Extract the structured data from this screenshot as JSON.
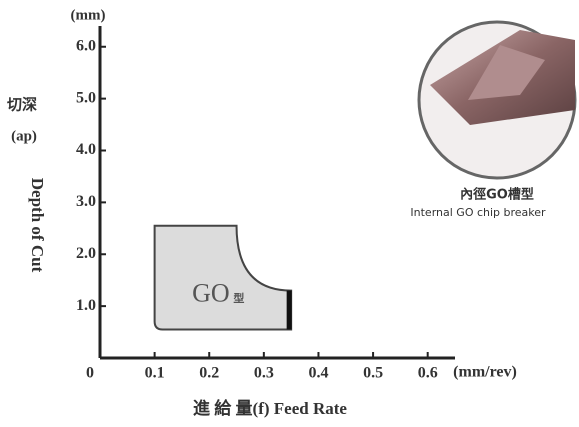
{
  "chart_data": {
    "type": "region",
    "y_unit": "(mm)",
    "x_unit": "(mm/rev)",
    "y_label_cn": "切深",
    "y_label_ap": "(ap)",
    "y_label": "Depth of Cut",
    "x_label": "進 給 量(f) Feed Rate",
    "region_label": "GO",
    "region_label_suffix": "型",
    "caption_cn": "內徑GO槽型",
    "caption": "Internal GO chip breaker",
    "x": [
      0.1,
      0.1,
      0.25,
      0.35,
      0.35
    ],
    "y": [
      0.55,
      2.55,
      2.55,
      1.3,
      0.55
    ],
    "color": "#dcdcdc",
    "xlim": [
      0,
      0.65
    ],
    "ylim": [
      0,
      6.4
    ],
    "xticks": [
      0,
      0.1,
      0.2,
      0.3,
      0.4,
      0.5,
      0.6
    ],
    "yticks": [
      {
        "value": 1,
        "label": "1.0"
      },
      {
        "value": 2,
        "label": "2.0"
      },
      {
        "value": 3,
        "label": "3.0"
      },
      {
        "value": 4,
        "label": "4.0"
      },
      {
        "value": 5,
        "label": "5.0"
      },
      {
        "value": 6,
        "label": "6.0"
      }
    ]
  }
}
